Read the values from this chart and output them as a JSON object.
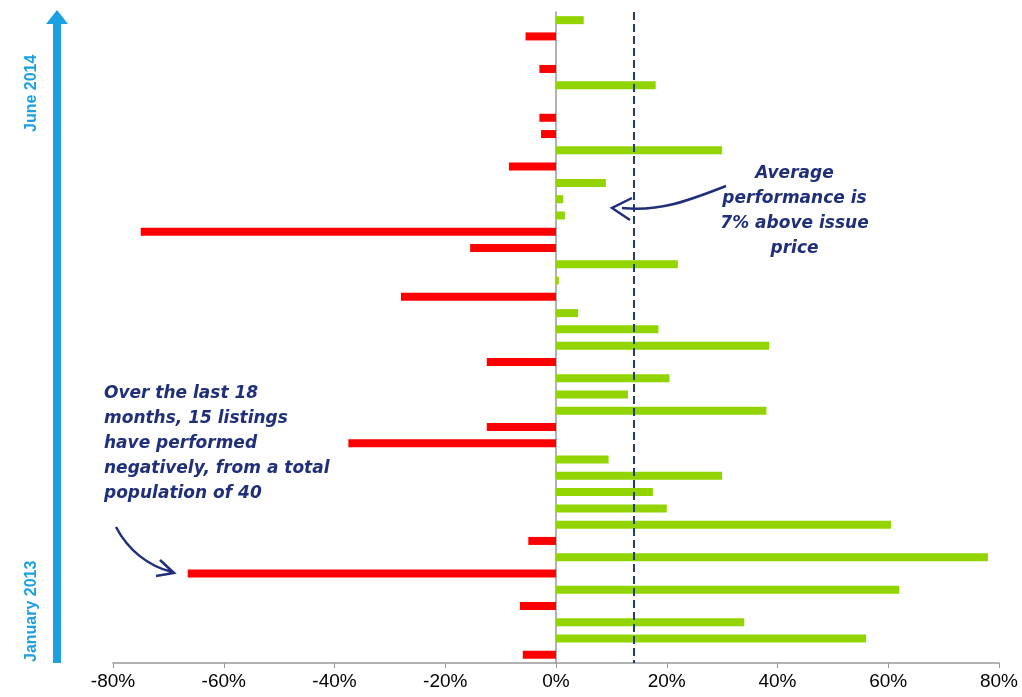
{
  "chart_data": {
    "type": "bar",
    "orientation": "horizontal",
    "categories": [
      null,
      null,
      null,
      null,
      null,
      null,
      null,
      null,
      null,
      null,
      null,
      null,
      null,
      null,
      null,
      null,
      null,
      null,
      null,
      null,
      null,
      null,
      null,
      null,
      null,
      null,
      null,
      null,
      null,
      null,
      null,
      null,
      null,
      null,
      null,
      null,
      null,
      null,
      null,
      null
    ],
    "values": [
      5,
      -5.5,
      0,
      -3,
      18,
      0,
      -3,
      -2.7,
      30,
      -8.5,
      9,
      1.3,
      1.6,
      -75,
      -15.5,
      22,
      0.5,
      -28,
      4,
      18.5,
      38.5,
      -12.5,
      20.5,
      13,
      38,
      -12.5,
      -37.5,
      9.5,
      30,
      17.5,
      20,
      60.5,
      -5,
      78,
      -66.5,
      62,
      -6.5,
      34,
      56,
      -6
    ],
    "colors": [
      "#92d400",
      "#ff0000",
      "#92d400",
      "#ff0000",
      "#92d400",
      "#92d400",
      "#ff0000",
      "#ff0000",
      "#92d400",
      "#ff0000",
      "#92d400",
      "#92d400",
      "#92d400",
      "#ff0000",
      "#ff0000",
      "#92d400",
      "#92d400",
      "#ff0000",
      "#92d400",
      "#92d400",
      "#92d400",
      "#ff0000",
      "#92d400",
      "#92d400",
      "#92d400",
      "#ff0000",
      "#ff0000",
      "#92d400",
      "#92d400",
      "#92d400",
      "#92d400",
      "#92d400",
      "#ff0000",
      "#92d400",
      "#ff0000",
      "#92d400",
      "#ff0000",
      "#92d400",
      "#92d400",
      "#ff0000"
    ],
    "xlim": [
      -80,
      80
    ],
    "xticks": [
      {
        "value": -80,
        "label": "-80%"
      },
      {
        "value": -60,
        "label": "-60%"
      },
      {
        "value": -40,
        "label": "-40%"
      },
      {
        "value": -20,
        "label": "-20%"
      },
      {
        "value": 0,
        "label": "0%"
      },
      {
        "value": 20,
        "label": "20%"
      },
      {
        "value": 40,
        "label": "40%"
      },
      {
        "value": 60,
        "label": "60%"
      },
      {
        "value": 80,
        "label": "80%"
      }
    ],
    "ref_lines": [
      {
        "axis": "x",
        "value": 14,
        "color": "#1f3d7a",
        "line_style": "dashed"
      }
    ],
    "annotations": [
      "Average performance is 7% above issue price",
      "Over the last 18 months, 15 listings have performed negatively, from a total population of 40",
      "June 2014",
      "January 2013"
    ],
    "data_labels": false
  }
}
